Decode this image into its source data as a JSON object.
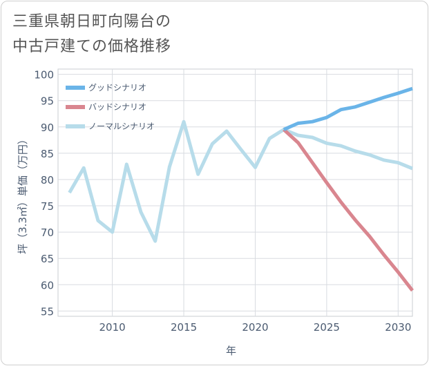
{
  "chart_data": {
    "type": "line",
    "title_lines": [
      "三重県朝日町向陽台の",
      "中古戸建ての価格推移"
    ],
    "xlabel": "年",
    "ylabel": "坪（3.3㎡）単価（万円）",
    "xlim": [
      2006.2,
      2031
    ],
    "ylim": [
      54,
      101
    ],
    "xticks": [
      2010,
      2015,
      2020,
      2025,
      2030
    ],
    "yticks": [
      55,
      60,
      65,
      70,
      75,
      80,
      85,
      90,
      95,
      100
    ],
    "grid": true,
    "legend_position": "top-left",
    "series": [
      {
        "name": "グッドシナリオ",
        "color": "#6ab4e8",
        "points": [
          [
            2022,
            89.5
          ],
          [
            2023,
            90.7
          ],
          [
            2024,
            91.0
          ],
          [
            2025,
            91.8
          ],
          [
            2026,
            93.3
          ],
          [
            2027,
            93.8
          ],
          [
            2028,
            94.7
          ],
          [
            2029,
            95.6
          ],
          [
            2030,
            96.4
          ],
          [
            2031,
            97.3
          ]
        ]
      },
      {
        "name": "バッドシナリオ",
        "color": "#d9868f",
        "points": [
          [
            2022,
            89.5
          ],
          [
            2023,
            87.0
          ],
          [
            2024,
            83.2
          ],
          [
            2025,
            79.4
          ],
          [
            2026,
            75.7
          ],
          [
            2027,
            72.3
          ],
          [
            2028,
            69.2
          ],
          [
            2029,
            65.7
          ],
          [
            2030,
            62.4
          ],
          [
            2031,
            58.9
          ]
        ]
      },
      {
        "name": "ノーマルシナリオ",
        "color": "#b7dcea",
        "points": [
          [
            2007,
            77.5
          ],
          [
            2008,
            82.2
          ],
          [
            2009,
            72.2
          ],
          [
            2010,
            70.0
          ],
          [
            2011,
            82.9
          ],
          [
            2012,
            73.8
          ],
          [
            2013,
            68.3
          ],
          [
            2014,
            82.4
          ],
          [
            2015,
            91.0
          ],
          [
            2016,
            81.0
          ],
          [
            2017,
            86.8
          ],
          [
            2018,
            89.2
          ],
          [
            2019,
            85.7
          ],
          [
            2020,
            82.3
          ],
          [
            2021,
            87.8
          ],
          [
            2022,
            89.5
          ],
          [
            2023,
            88.4
          ],
          [
            2024,
            88.0
          ],
          [
            2025,
            86.9
          ],
          [
            2026,
            86.4
          ],
          [
            2027,
            85.4
          ],
          [
            2028,
            84.7
          ],
          [
            2029,
            83.7
          ],
          [
            2030,
            83.2
          ],
          [
            2031,
            82.1
          ]
        ]
      }
    ]
  }
}
